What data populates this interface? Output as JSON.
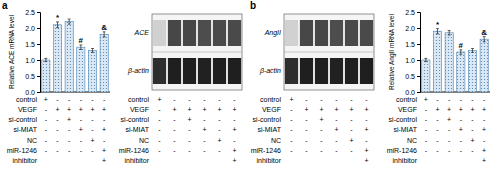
{
  "chart_data": [
    {
      "type": "bar",
      "title": "a",
      "ylabel": "Relative ACE mRNA level",
      "values": [
        1.0,
        2.1,
        2.2,
        1.4,
        1.3,
        1.8
      ],
      "errors": [
        0.05,
        0.09,
        0.08,
        0.07,
        0.06,
        0.08
      ],
      "annotations": [
        null,
        "*",
        null,
        "#",
        null,
        "&"
      ],
      "ylim": [
        0,
        2.5
      ],
      "yticks": [
        {
          "value": 0,
          "label": "0.0"
        },
        0.5,
        {
          "value": 1,
          "label": "1.0"
        },
        1.5,
        {
          "value": 2,
          "label": "2.0"
        },
        2.5
      ],
      "row_labels": [
        "control",
        "VEGF",
        "si-control",
        "si-MIAT",
        "NC",
        "miR-1246",
        "inhibitor"
      ],
      "table": [
        [
          "+",
          "-",
          "-",
          "-",
          "-",
          "-"
        ],
        [
          "-",
          "+",
          "+",
          "+",
          "+",
          "+"
        ],
        [
          "-",
          "-",
          "+",
          "-",
          "-",
          "-"
        ],
        [
          "-",
          "-",
          "-",
          "+",
          "-",
          "+"
        ],
        [
          "-",
          "-",
          "-",
          "-",
          "+",
          "-"
        ],
        [
          "-",
          "-",
          "-",
          "-",
          "-",
          "+"
        ],
        [
          null,
          null,
          null,
          null,
          null,
          "+"
        ]
      ]
    },
    {
      "type": "blot",
      "series": [
        {
          "name": "ACE",
          "colors": [
            "#d1d1d1",
            "#474747",
            "#474747",
            "#4d4d4d",
            "#4a4a4a",
            "#4a4a4a"
          ]
        },
        {
          "name": "β-actin",
          "colors": [
            "#2e2e2e",
            "#1f1f1f",
            "#1f1f1f",
            "#212121",
            "#1f1f1f",
            "#1f1f1f"
          ]
        }
      ],
      "row_labels": [
        "control",
        "VEGF",
        "si-control",
        "si-MIAT",
        "NC",
        "miR-1246",
        "inhibitor"
      ],
      "table": [
        [
          "+",
          "-",
          "-",
          "-",
          "-",
          "-"
        ],
        [
          "-",
          "+",
          "+",
          "+",
          "+",
          "+"
        ],
        [
          "-",
          "-",
          "+",
          "-",
          "-",
          "-"
        ],
        [
          "-",
          "-",
          "-",
          "+",
          "-",
          "+"
        ],
        [
          "-",
          "-",
          "-",
          "-",
          "+",
          "-"
        ],
        [
          "-",
          "-",
          "-",
          "-",
          "-",
          "+"
        ],
        [
          null,
          null,
          null,
          null,
          null,
          "+"
        ]
      ]
    },
    {
      "type": "blot",
      "title": "b",
      "series": [
        {
          "name": "AngII",
          "colors": [
            "#d1d1d1",
            "#474747",
            "#474747",
            "#4d4d4d",
            "#4a4a4a",
            "#4a4a4a"
          ]
        },
        {
          "name": "β-actin",
          "colors": [
            "#2e2e2e",
            "#1f1f1f",
            "#1f1f1f",
            "#212121",
            "#1f1f1f",
            "#1f1f1f"
          ]
        }
      ],
      "row_labels": [
        "control",
        "VEGF",
        "si-control",
        "si-MIAT",
        "NC",
        "miR-1246",
        "inhibitor"
      ],
      "table": [
        [
          "+",
          "-",
          "-",
          "-",
          "-",
          "-"
        ],
        [
          "-",
          "+",
          "+",
          "+",
          "+",
          "+"
        ],
        [
          "-",
          "-",
          "+",
          "-",
          "-",
          "-"
        ],
        [
          "-",
          "-",
          "-",
          "+",
          "-",
          "+"
        ],
        [
          "-",
          "-",
          "-",
          "-",
          "+",
          "-"
        ],
        [
          "-",
          "-",
          "-",
          "-",
          "-",
          "+"
        ],
        [
          null,
          null,
          null,
          null,
          null,
          "+"
        ]
      ]
    },
    {
      "type": "bar",
      "ylabel": "Relative AngII mRNA level",
      "values": [
        1.0,
        1.9,
        1.85,
        1.25,
        1.3,
        1.65
      ],
      "errors": [
        0.05,
        0.08,
        0.07,
        0.07,
        0.06,
        0.08
      ],
      "annotations": [
        null,
        "*",
        null,
        "#",
        null,
        "&"
      ],
      "ylim": [
        0,
        2.5
      ],
      "yticks": [
        {
          "value": 0,
          "label": "0.0"
        },
        0.5,
        {
          "value": 1,
          "label": "1.0"
        },
        1.5,
        {
          "value": 2,
          "label": "2.0"
        },
        2.5
      ],
      "row_labels": [
        "control",
        "VEGF",
        "si-control",
        "si-MIAT",
        "NC",
        "miR-1246",
        "inhibitor"
      ],
      "table": [
        [
          "+",
          "-",
          "-",
          "-",
          "-",
          "-"
        ],
        [
          "-",
          "+",
          "+",
          "+",
          "+",
          "+"
        ],
        [
          "-",
          "-",
          "+",
          "-",
          "-",
          "-"
        ],
        [
          "-",
          "-",
          "-",
          "+",
          "-",
          "+"
        ],
        [
          "-",
          "-",
          "-",
          "-",
          "+",
          "-"
        ],
        [
          "-",
          "-",
          "-",
          "-",
          "-",
          "+"
        ],
        [
          null,
          null,
          null,
          null,
          null,
          "+"
        ]
      ]
    }
  ]
}
